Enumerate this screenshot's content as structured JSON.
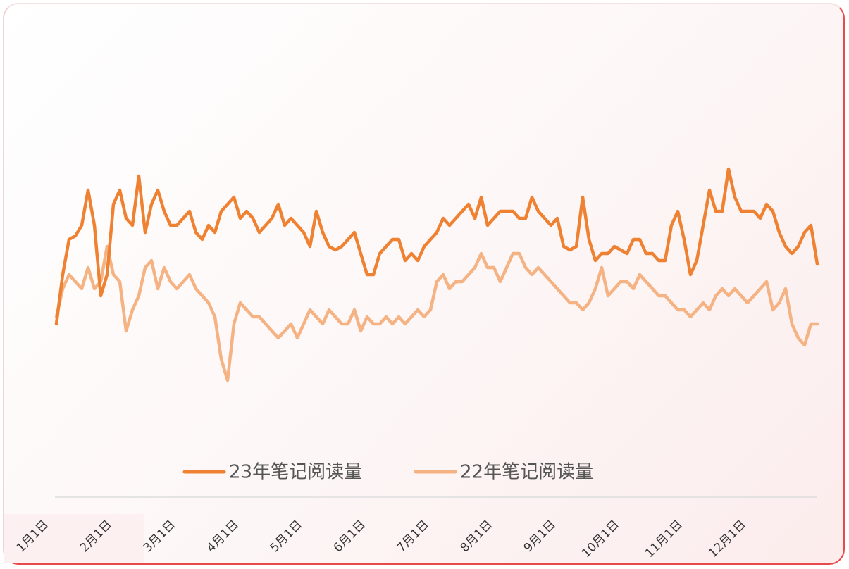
{
  "chart_data": {
    "type": "line",
    "categories": [
      "1月1日",
      null,
      null,
      null,
      null,
      null,
      null,
      null,
      null,
      null,
      "2月1日",
      null,
      null,
      null,
      null,
      null,
      null,
      null,
      null,
      null,
      "3月1日",
      null,
      null,
      null,
      null,
      null,
      null,
      null,
      null,
      null,
      "4月1日",
      null,
      null,
      null,
      null,
      null,
      null,
      null,
      null,
      null,
      "5月1日",
      null,
      null,
      null,
      null,
      null,
      null,
      null,
      null,
      null,
      "6月1日",
      null,
      null,
      null,
      null,
      null,
      null,
      null,
      null,
      null,
      "7月1日",
      null,
      null,
      null,
      null,
      null,
      null,
      null,
      null,
      null,
      "8月1日",
      null,
      null,
      null,
      null,
      null,
      null,
      null,
      null,
      null,
      "9月1日",
      null,
      null,
      null,
      null,
      null,
      null,
      null,
      null,
      null,
      "10月1日",
      null,
      null,
      null,
      null,
      null,
      null,
      null,
      null,
      null,
      "11月1日",
      null,
      null,
      null,
      null,
      null,
      null,
      null,
      null,
      null,
      "12月1日",
      null,
      null,
      null,
      null,
      null,
      null,
      null,
      null,
      null,
      null
    ],
    "series": [
      {
        "name": "23年笔记阅读量",
        "color": "#ef8232",
        "values": [
          140,
          210,
          260,
          265,
          280,
          330,
          280,
          180,
          210,
          310,
          330,
          290,
          280,
          350,
          270,
          310,
          330,
          300,
          280,
          280,
          290,
          300,
          270,
          260,
          280,
          270,
          300,
          310,
          320,
          290,
          300,
          290,
          270,
          280,
          290,
          310,
          280,
          290,
          280,
          270,
          250,
          300,
          270,
          250,
          245,
          250,
          260,
          270,
          240,
          210,
          210,
          240,
          250,
          260,
          260,
          230,
          240,
          230,
          250,
          260,
          270,
          290,
          280,
          290,
          300,
          310,
          290,
          320,
          280,
          290,
          300,
          300,
          300,
          290,
          290,
          320,
          300,
          290,
          280,
          290,
          250,
          245,
          250,
          320,
          260,
          230,
          240,
          240,
          250,
          245,
          240,
          260,
          260,
          240,
          240,
          230,
          230,
          280,
          300,
          260,
          210,
          230,
          280,
          330,
          300,
          300,
          360,
          320,
          300,
          300,
          300,
          290,
          310,
          300,
          270,
          250,
          240,
          250,
          270,
          280,
          225
        ]
      },
      {
        "name": "22年笔记阅读量",
        "color": "#f5b283",
        "values": [
          150,
          190,
          210,
          200,
          190,
          220,
          190,
          200,
          250,
          210,
          200,
          130,
          160,
          180,
          220,
          230,
          190,
          220,
          200,
          190,
          200,
          210,
          190,
          180,
          170,
          150,
          90,
          60,
          140,
          170,
          160,
          150,
          150,
          140,
          130,
          120,
          130,
          140,
          120,
          140,
          160,
          150,
          140,
          160,
          150,
          140,
          140,
          160,
          130,
          150,
          140,
          140,
          150,
          140,
          150,
          140,
          150,
          160,
          150,
          160,
          200,
          210,
          190,
          200,
          200,
          210,
          220,
          240,
          220,
          220,
          200,
          220,
          240,
          240,
          220,
          210,
          220,
          210,
          200,
          190,
          180,
          170,
          170,
          160,
          170,
          190,
          220,
          180,
          190,
          200,
          200,
          190,
          210,
          200,
          190,
          180,
          180,
          170,
          160,
          160,
          150,
          160,
          170,
          160,
          180,
          190,
          180,
          190,
          180,
          170,
          180,
          190,
          200,
          160,
          170,
          190,
          140,
          120,
          110,
          140,
          140
        ]
      }
    ],
    "ylim": [
      0,
      450
    ]
  }
}
